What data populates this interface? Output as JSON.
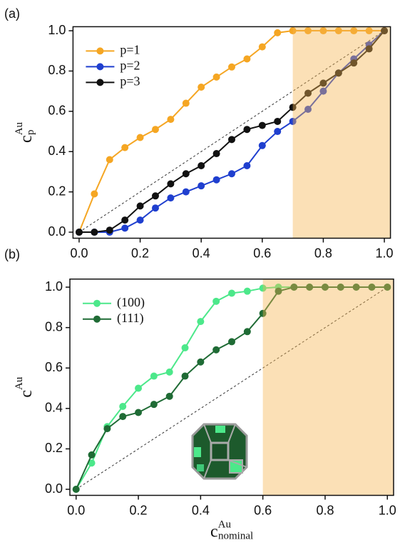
{
  "chart_data": [
    {
      "type": "line",
      "panel_label": "(a)",
      "ylabel": {
        "base": "c",
        "sub": "p",
        "sup": "Au"
      },
      "x": [
        0,
        0.05,
        0.1,
        0.15,
        0.2,
        0.25,
        0.3,
        0.35,
        0.4,
        0.45,
        0.5,
        0.55,
        0.6,
        0.65,
        0.7,
        0.75,
        0.8,
        0.85,
        0.9,
        0.95,
        1.0
      ],
      "series": [
        {
          "name": "p=1",
          "color": "#f5a623",
          "values": [
            0,
            0.19,
            0.36,
            0.42,
            0.47,
            0.51,
            0.56,
            0.64,
            0.72,
            0.77,
            0.82,
            0.86,
            0.92,
            0.99,
            1.0,
            1.0,
            1.0,
            1.0,
            1.0,
            1.0,
            1.0
          ]
        },
        {
          "name": "p=2",
          "color": "#1f3fcf",
          "values": [
            0,
            0,
            0,
            0.02,
            0.06,
            0.12,
            0.17,
            0.2,
            0.23,
            0.26,
            0.29,
            0.33,
            0.43,
            0.5,
            0.55,
            0.61,
            0.7,
            0.79,
            0.86,
            0.93,
            1.0
          ]
        },
        {
          "name": "p=3",
          "color": "#111111",
          "values": [
            0,
            0,
            0.01,
            0.06,
            0.13,
            0.18,
            0.24,
            0.29,
            0.33,
            0.39,
            0.46,
            0.51,
            0.53,
            0.55,
            0.62,
            0.69,
            0.74,
            0.79,
            0.84,
            0.91,
            1.0
          ]
        }
      ],
      "shaded_region": [
        0.7,
        1.02
      ],
      "diagonal": true,
      "legend": "upper left",
      "xlim": [
        -0.02,
        1.02
      ],
      "ylim": [
        -0.03,
        1.02
      ],
      "xticks": [
        {
          "value": 0,
          "label": "0.0"
        },
        0.2,
        0.4,
        0.6,
        0.8,
        {
          "value": 1,
          "label": "1.0"
        }
      ],
      "yticks": [
        {
          "value": 0,
          "label": "0.0"
        },
        0.2,
        0.4,
        0.6,
        0.8,
        {
          "value": 1,
          "label": "1.0"
        }
      ]
    },
    {
      "type": "line",
      "panel_label": "(b)",
      "ylabel": {
        "base": "c",
        "sup": "Au"
      },
      "xlabel": {
        "base": "c",
        "sub": "nominal",
        "sup": "Au"
      },
      "x": [
        0,
        0.05,
        0.1,
        0.15,
        0.2,
        0.25,
        0.3,
        0.35,
        0.4,
        0.45,
        0.5,
        0.55,
        0.6,
        0.65,
        0.7,
        0.75,
        0.8,
        0.85,
        0.9,
        0.95,
        1.0
      ],
      "series": [
        {
          "name": "(100)",
          "color": "#4ce88a",
          "values": [
            0,
            0.13,
            0.31,
            0.41,
            0.5,
            0.56,
            0.58,
            0.7,
            0.83,
            0.93,
            0.97,
            0.98,
            0.995,
            1.0,
            1.0,
            1.0,
            1.0,
            1.0,
            1.0,
            1.0,
            1.0
          ]
        },
        {
          "name": "(111)",
          "color": "#1f6b35",
          "values": [
            0,
            0.17,
            0.3,
            0.36,
            0.38,
            0.42,
            0.46,
            0.56,
            0.63,
            0.69,
            0.73,
            0.78,
            0.87,
            0.98,
            1.0,
            1.0,
            1.0,
            1.0,
            1.0,
            1.0,
            1.0
          ]
        }
      ],
      "shaded_region": [
        0.6,
        1.02
      ],
      "diagonal": true,
      "legend": "upper left",
      "xlim": [
        -0.02,
        1.02
      ],
      "ylim": [
        -0.03,
        1.04
      ],
      "xticks": [
        {
          "value": 0,
          "label": "0.0"
        },
        0.2,
        0.4,
        0.6,
        0.8,
        {
          "value": 1,
          "label": "1.0"
        }
      ],
      "yticks": [
        {
          "value": 0,
          "label": "0.0"
        },
        0.2,
        0.4,
        0.6,
        0.8,
        {
          "value": 1,
          "label": "1.0"
        }
      ]
    }
  ]
}
